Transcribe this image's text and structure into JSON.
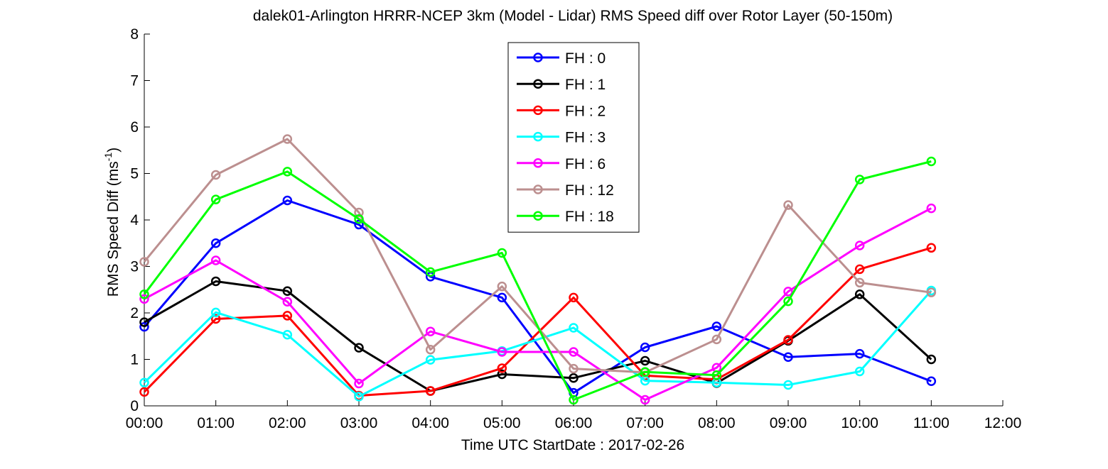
{
  "chart_data": {
    "type": "line",
    "title": "dalek01-Arlington HRRR-NCEP 3km (Model - Lidar) RMS Speed diff over Rotor Layer (50-150m)",
    "xlabel": "Time UTC    StartDate : 2017-02-26",
    "ylabel_main": "RMS Speed Diff (ms",
    "ylabel_sup": "-1",
    "ylabel_close": ")",
    "x_ticks": [
      "00:00",
      "01:00",
      "02:00",
      "03:00",
      "04:00",
      "05:00",
      "06:00",
      "07:00",
      "08:00",
      "09:00",
      "10:00",
      "11:00",
      "12:00"
    ],
    "y_ticks": [
      "0",
      "1",
      "2",
      "3",
      "4",
      "5",
      "6",
      "7",
      "8"
    ],
    "xlim": [
      0,
      12
    ],
    "ylim": [
      0,
      8
    ],
    "grid": false,
    "legend_position": "top-center",
    "x": [
      0,
      1,
      2,
      3,
      4,
      5,
      6,
      7,
      8,
      9,
      10,
      11
    ],
    "series": [
      {
        "name": "FH : 0",
        "color": "#0000ff",
        "values": [
          1.7,
          3.5,
          4.42,
          3.9,
          2.78,
          2.33,
          0.28,
          1.26,
          1.71,
          1.05,
          1.12,
          0.53
        ]
      },
      {
        "name": "FH : 1",
        "color": "#000000",
        "values": [
          1.8,
          2.68,
          2.47,
          1.25,
          0.32,
          0.68,
          0.6,
          0.97,
          0.49,
          1.4,
          2.4,
          1.0
        ]
      },
      {
        "name": "FH : 2",
        "color": "#ff0000",
        "values": [
          0.3,
          1.87,
          1.94,
          0.22,
          0.32,
          0.81,
          2.33,
          0.65,
          0.57,
          1.42,
          2.94,
          3.4
        ]
      },
      {
        "name": "FH : 3",
        "color": "#00ffff",
        "values": [
          0.5,
          2.01,
          1.53,
          0.2,
          0.99,
          1.18,
          1.68,
          0.54,
          0.5,
          0.45,
          0.74,
          2.48
        ]
      },
      {
        "name": "FH : 6",
        "color": "#ff00ff",
        "values": [
          2.3,
          3.13,
          2.24,
          0.48,
          1.6,
          1.16,
          1.16,
          0.13,
          0.82,
          2.46,
          3.45,
          4.25
        ]
      },
      {
        "name": "FH : 12",
        "color": "#bc8f8f",
        "values": [
          3.1,
          4.97,
          5.74,
          4.16,
          1.21,
          2.57,
          0.8,
          0.72,
          1.43,
          4.32,
          2.65,
          2.44
        ]
      },
      {
        "name": "FH : 18",
        "color": "#00ff00",
        "values": [
          2.4,
          4.44,
          5.04,
          4.02,
          2.88,
          3.29,
          0.13,
          0.73,
          0.66,
          2.25,
          4.87,
          5.26
        ]
      }
    ]
  }
}
